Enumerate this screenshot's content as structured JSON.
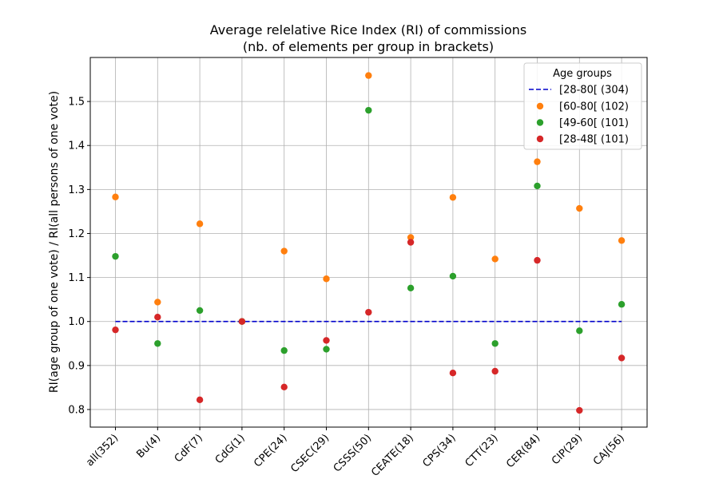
{
  "chart_data": {
    "type": "scatter",
    "title": "Average relelative Rice Index (RI) of commissions",
    "subtitle": "(nb. of elements per group in brackets)",
    "xlabel": "",
    "ylabel": "RI(age group of one vote) / RI(all persons of one vote)",
    "ylim": [
      0.76,
      1.6
    ],
    "yticks": [
      "0.8",
      "0.9",
      "1.0",
      "1.1",
      "1.2",
      "1.3",
      "1.4",
      "1.5"
    ],
    "grid": true,
    "legend": {
      "title": "Age groups",
      "placement": "top-right"
    },
    "categories": [
      "all(352)",
      "Bu(4)",
      "CdF(7)",
      "CdG(1)",
      "CPE(24)",
      "CSEC(29)",
      "CSSS(50)",
      "CEATE(18)",
      "CPS(34)",
      "CTT(23)",
      "CER(84)",
      "CIP(29)",
      "CAJ(56)"
    ],
    "reference_line": {
      "name": "[28-80[  (304)",
      "value": 1.0,
      "color": "#0000cc",
      "style": "dashed"
    },
    "series": [
      {
        "name": "[60-80[  (102)",
        "color": "#ff7f0e",
        "values": [
          1.283,
          1.044,
          1.222,
          1.0,
          1.16,
          1.097,
          1.559,
          1.191,
          1.282,
          1.142,
          1.363,
          1.257,
          1.184
        ]
      },
      {
        "name": "[49-60[  (101)",
        "color": "#2ca02c",
        "values": [
          1.148,
          0.95,
          1.025,
          1.0,
          0.934,
          0.937,
          1.48,
          1.076,
          1.103,
          0.95,
          1.308,
          0.979,
          1.039
        ]
      },
      {
        "name": "[28-48[  (101)",
        "color": "#d62728",
        "values": [
          0.981,
          1.01,
          0.822,
          1.0,
          0.851,
          0.957,
          1.021,
          1.18,
          0.883,
          0.887,
          1.139,
          0.798,
          0.917
        ]
      }
    ]
  }
}
